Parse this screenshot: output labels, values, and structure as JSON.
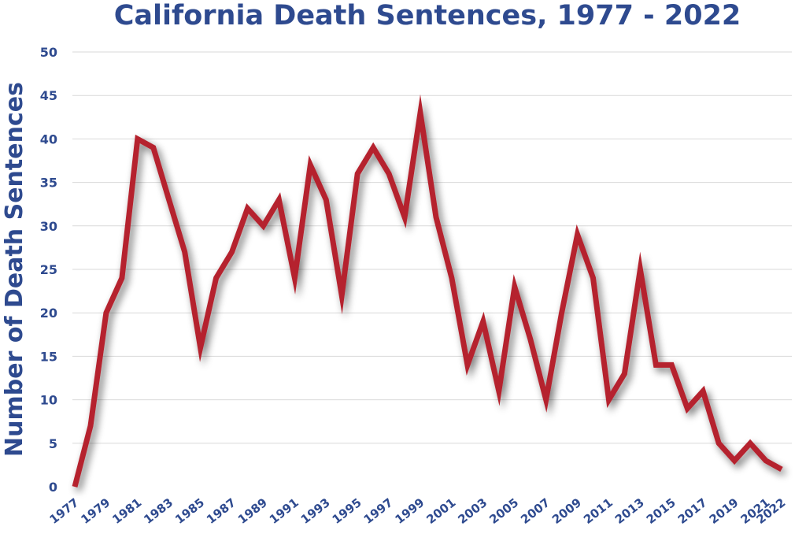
{
  "chart_data": {
    "type": "line",
    "title": "California Death Sentences, 1977 - 2022",
    "xlabel": "",
    "ylabel": "Number of Death Sentences",
    "ylim": [
      0,
      50
    ],
    "yticks": [
      0,
      5,
      10,
      15,
      20,
      25,
      30,
      35,
      40,
      45,
      50
    ],
    "xlim": [
      1977,
      2022
    ],
    "xtick_labels": [
      "1977",
      "1979",
      "1981",
      "1983",
      "1985",
      "1987",
      "1989",
      "1991",
      "1993",
      "1995",
      "1997",
      "1999",
      "2001",
      "2003",
      "2005",
      "2007",
      "2009",
      "2011",
      "2013",
      "2015",
      "2017",
      "2019",
      "2021",
      "2022"
    ],
    "grid": true,
    "legend": "none",
    "series": [
      {
        "x": [
          1977,
          1978,
          1979,
          1980,
          1981,
          1982,
          1983,
          1984,
          1985,
          1986,
          1987,
          1988,
          1989,
          1990,
          1991,
          1992,
          1993,
          1994,
          1995,
          1996,
          1997,
          1998,
          1999,
          2000,
          2001,
          2002,
          2003,
          2004,
          2005,
          2006,
          2007,
          2008,
          2009,
          2010,
          2011,
          2012,
          2013,
          2014,
          2015,
          2016,
          2017,
          2018,
          2019,
          2020,
          2021,
          2022
        ],
        "values": [
          0,
          7,
          20,
          24,
          40,
          39,
          33,
          27,
          16,
          24,
          27,
          32,
          30,
          33,
          24,
          37,
          33,
          22,
          36,
          39,
          36,
          31,
          43,
          31,
          24,
          14,
          19,
          11,
          23,
          17,
          10,
          20,
          29,
          24,
          10,
          13,
          25,
          14,
          14,
          9,
          11,
          5,
          3,
          5,
          3,
          2
        ]
      }
    ]
  },
  "colors": {
    "title": "#2e4a8f",
    "axis_text": "#2e4a8f",
    "line": "#b5222e",
    "grid": "#d9d9d9",
    "shadow": "#000000"
  }
}
